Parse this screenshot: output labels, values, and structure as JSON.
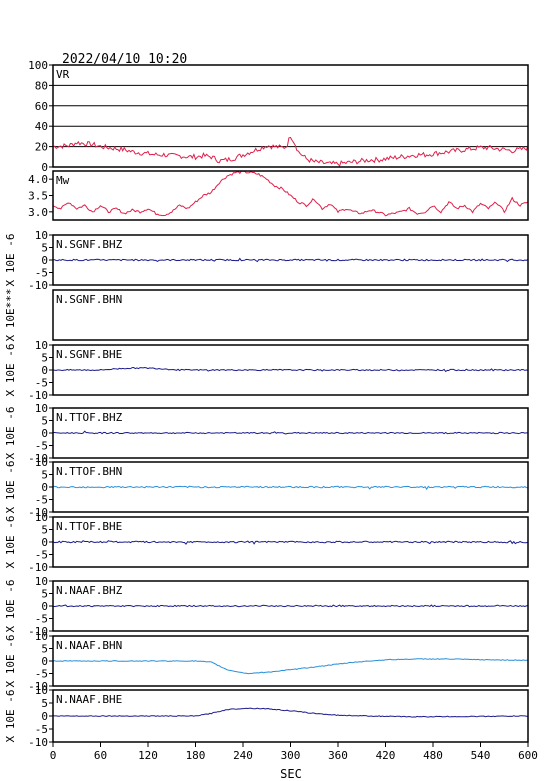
{
  "chart_data": {
    "type": "line",
    "title": "2022/04/10 10:20",
    "xlabel": "SEC",
    "xlim": [
      0,
      600
    ],
    "x_ticks": [
      "0",
      "60",
      "120",
      "180",
      "240",
      "300",
      "360",
      "420",
      "480",
      "540",
      "600"
    ],
    "colors": {
      "frame": "#000000",
      "grid": "#000000",
      "red": "#e0204a",
      "navy": "#1a1a8c",
      "blue": "#2a8fd8"
    },
    "panels": [
      {
        "name": "VR",
        "color": "red",
        "ylim": [
          0,
          100
        ],
        "y_ticks": [
          "100",
          "80",
          "60",
          "40",
          "20",
          "0"
        ],
        "gridlines": [
          20,
          40,
          60,
          80
        ],
        "ylabel": "",
        "x": [
          0,
          20,
          30,
          40,
          50,
          60,
          70,
          80,
          90,
          100,
          110,
          120,
          130,
          140,
          150,
          160,
          170,
          180,
          190,
          200,
          205,
          210,
          220,
          230,
          240,
          250,
          260,
          270,
          280,
          290,
          295,
          300,
          305,
          310,
          320,
          330,
          340,
          350,
          360,
          370,
          380,
          390,
          400,
          410,
          420,
          430,
          440,
          450,
          460,
          470,
          480,
          490,
          500,
          510,
          520,
          530,
          540,
          550,
          560,
          570,
          580,
          590,
          600
        ],
        "y": [
          20,
          21,
          24,
          23,
          22,
          20,
          19,
          18,
          17,
          15,
          14,
          13,
          12,
          12,
          11,
          11,
          10,
          10,
          11,
          10,
          8,
          6,
          7,
          9,
          12,
          15,
          18,
          21,
          20,
          19,
          20,
          31,
          24,
          15,
          8,
          5,
          4,
          3,
          3,
          4,
          5,
          6,
          7,
          7,
          8,
          9,
          10,
          11,
          12,
          12,
          13,
          14,
          15,
          16,
          17,
          18,
          19,
          19,
          18,
          17,
          16,
          17,
          19
        ]
      },
      {
        "name": "Mw",
        "color": "red",
        "ylim": [
          2.75,
          4.25
        ],
        "y_ticks": [
          "4.0",
          "3.5",
          "3.0"
        ],
        "y_tick_values": [
          4.0,
          3.5,
          3.0
        ],
        "gridlines": [],
        "ylabel": "",
        "x": [
          0,
          10,
          20,
          30,
          40,
          50,
          60,
          70,
          80,
          90,
          100,
          110,
          120,
          130,
          140,
          150,
          160,
          170,
          180,
          190,
          200,
          210,
          220,
          230,
          240,
          250,
          260,
          270,
          280,
          290,
          300,
          310,
          320,
          330,
          340,
          350,
          360,
          370,
          380,
          390,
          400,
          410,
          420,
          430,
          440,
          450,
          460,
          470,
          480,
          490,
          500,
          510,
          520,
          530,
          540,
          550,
          560,
          570,
          580,
          590,
          600
        ],
        "y": [
          3.2,
          3.1,
          3.3,
          3.1,
          3.2,
          3.0,
          3.2,
          3.0,
          3.1,
          2.95,
          3.05,
          3.0,
          3.1,
          2.95,
          2.9,
          3.0,
          3.2,
          3.1,
          3.3,
          3.5,
          3.6,
          3.9,
          4.1,
          4.2,
          4.22,
          4.2,
          4.15,
          4.0,
          3.8,
          3.7,
          3.5,
          3.3,
          3.2,
          3.4,
          3.1,
          3.25,
          3.0,
          3.1,
          3.0,
          2.95,
          3.05,
          3.0,
          2.9,
          2.95,
          3.0,
          3.1,
          2.95,
          3.0,
          3.2,
          3.0,
          3.3,
          3.1,
          3.2,
          3.0,
          3.25,
          3.1,
          3.3,
          3.0,
          3.4,
          3.2,
          3.3
        ]
      },
      {
        "name": "N.SGNF.BHZ",
        "color": "navy",
        "ylim": [
          -10,
          10
        ],
        "y_ticks": [
          "10",
          "5",
          "0",
          "-5",
          "-10"
        ],
        "ylabel": "X 10E -6",
        "shape": "flat",
        "level": 0,
        "noise": 0.6
      },
      {
        "name": "N.SGNF.BHN",
        "color": "navy",
        "ylim": [
          -10,
          10
        ],
        "y_ticks": [],
        "ylabel": "X 10E***",
        "shape": "none"
      },
      {
        "name": "N.SGNF.BHE",
        "color": "navy",
        "ylim": [
          -10,
          10
        ],
        "y_ticks": [
          "10",
          "5",
          "0",
          "-5",
          "-10"
        ],
        "ylabel": "X 10E -6",
        "shape": "bump",
        "level": 0,
        "bump": [
          60,
          160,
          0.8
        ],
        "noise": 0.5
      },
      {
        "name": "N.TTOF.BHZ",
        "color": "navy",
        "ylim": [
          -10,
          10
        ],
        "y_ticks": [
          "10",
          "5",
          "0",
          "-5",
          "-10"
        ],
        "ylabel": "X 10E -6",
        "shape": "flat",
        "level": 0,
        "noise": 0.5
      },
      {
        "name": "N.TTOF.BHN",
        "color": "blue",
        "ylim": [
          -10,
          10
        ],
        "y_ticks": [
          "10",
          "5",
          "0",
          "-5",
          "-10"
        ],
        "ylabel": "X 10E -6",
        "shape": "flat",
        "level": 0,
        "noise": 0.6
      },
      {
        "name": "N.TTOF.BHE",
        "color": "navy",
        "ylim": [
          -10,
          10
        ],
        "y_ticks": [
          "10",
          "5",
          "0",
          "-5",
          "-10"
        ],
        "ylabel": "X 10E -6",
        "shape": "flat",
        "level": 0,
        "noise": 0.6
      },
      {
        "name": "N.NAAF.BHZ",
        "color": "navy",
        "ylim": [
          -10,
          10
        ],
        "y_ticks": [
          "10",
          "5",
          "0",
          "-5",
          "-10"
        ],
        "ylabel": "X 10E -6",
        "shape": "flat",
        "level": 0,
        "noise": 0.5
      },
      {
        "name": "N.NAAF.BHN",
        "color": "blue",
        "ylim": [
          -10,
          10
        ],
        "y_ticks": [
          "10",
          "5",
          "0",
          "-5",
          "-10"
        ],
        "ylabel": "X 10E -6",
        "shape": "curve",
        "x": [
          0,
          180,
          200,
          220,
          245,
          270,
          300,
          340,
          380,
          420,
          460,
          500,
          540,
          600
        ],
        "y": [
          0,
          0,
          -0.5,
          -3.5,
          -5,
          -4.5,
          -3.5,
          -2,
          -0.5,
          0.5,
          0.8,
          0.8,
          0.5,
          0.3
        ]
      },
      {
        "name": "N.NAAF.BHE",
        "color": "navy",
        "ylim": [
          -10,
          10
        ],
        "y_ticks": [
          "10",
          "5",
          "0",
          "-5",
          "-10"
        ],
        "ylabel": "X 10E -6",
        "shape": "curve",
        "x": [
          0,
          180,
          200,
          220,
          245,
          270,
          300,
          330,
          360,
          400,
          450,
          520,
          600
        ],
        "y": [
          0,
          0,
          1,
          2.5,
          3,
          2.8,
          2,
          1,
          0.3,
          0,
          -0.3,
          -0.2,
          0
        ]
      }
    ]
  }
}
